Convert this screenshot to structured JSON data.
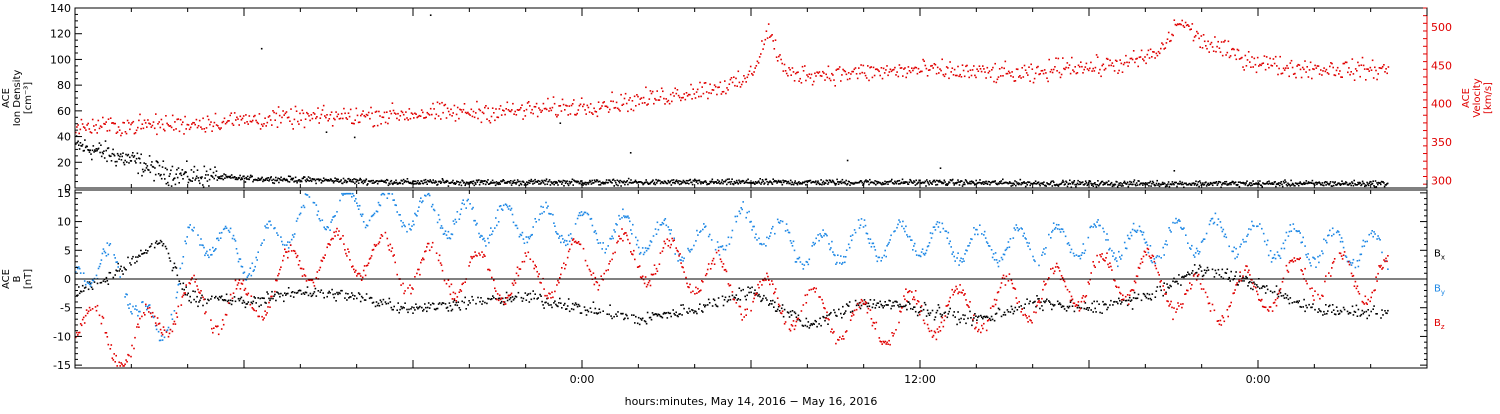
{
  "chart_data": [
    {
      "type": "scatter",
      "panel": "top",
      "ylabel": [
        "ACE",
        "Ion Density",
        "[cm⁻³]"
      ],
      "ylim": [
        0,
        140
      ],
      "yticks": [
        0,
        20,
        40,
        60,
        80,
        100,
        120,
        140
      ],
      "y2label": [
        "ACE",
        "Velocity",
        "[km/s]"
      ],
      "y2lim": [
        290,
        525
      ],
      "y2ticks": [
        300,
        350,
        400,
        450,
        500
      ],
      "y2_color": "#e00000",
      "xlim_hours": [
        -18,
        30
      ],
      "series": [
        {
          "axis": "left",
          "color": "#000000",
          "knots_hours": [
            -18,
            -17,
            -16,
            -15,
            -14,
            -12,
            -10,
            -6,
            0,
            6,
            12,
            18,
            24,
            28.6
          ],
          "knots_values": [
            34,
            28,
            22,
            13,
            10,
            8,
            7,
            5,
            5,
            5,
            5,
            4,
            4,
            4
          ],
          "outliers": [
            [
              -5.4,
              135
            ],
            [
              -11.4,
              109
            ],
            [
              -9.1,
              44
            ],
            [
              -8.1,
              40
            ],
            [
              -0.8,
              51
            ],
            [
              1.7,
              28
            ],
            [
              9.4,
              22
            ],
            [
              12.7,
              16
            ],
            [
              21.0,
              14
            ]
          ]
        },
        {
          "axis": "right",
          "color": "#e00000",
          "knots_hours": [
            -18,
            -14,
            -12,
            -8,
            -6,
            -2,
            0,
            2,
            4,
            5.6,
            6.0,
            6.6,
            7.2,
            9,
            12,
            14,
            16,
            17.2,
            18,
            19.5,
            20.5,
            21.2,
            22,
            23.5,
            25,
            28.6
          ],
          "knots_values": [
            370,
            375,
            380,
            385,
            388,
            392,
            398,
            405,
            418,
            428,
            440,
            497,
            440,
            440,
            445,
            442,
            438,
            452,
            448,
            455,
            468,
            510,
            482,
            460,
            448,
            445
          ]
        }
      ]
    },
    {
      "type": "scatter",
      "panel": "bottom",
      "ylabel": [
        "ACE",
        "B",
        "[nT]"
      ],
      "ylim": [
        -15.5,
        15.5
      ],
      "yticks": [
        -15,
        -10,
        -5,
        0,
        5,
        10,
        15
      ],
      "xlim_hours": [
        -18,
        30
      ],
      "xticks_hours": [
        -12,
        0,
        12,
        24
      ],
      "xtick_labels": [
        "0:00",
        "12:00",
        "0:00"
      ],
      "xtick_label_hours": [
        0,
        12,
        24
      ],
      "xlabel": "hours:minutes, May 14, 2016 − May 16, 2016",
      "series": [
        {
          "name": "Bx",
          "color": "#000000",
          "knots_hours": [
            -18,
            -17,
            -16,
            -15,
            -14,
            -12,
            -10,
            -8,
            -6,
            -4,
            -2,
            0,
            2,
            4,
            6,
            8,
            10,
            12,
            14,
            16,
            18,
            20,
            22,
            24,
            26,
            28.6
          ],
          "knots_values": [
            -2,
            0,
            3,
            7,
            -3,
            -4,
            -2,
            -3,
            -5,
            -4,
            -3,
            -5,
            -7,
            -5,
            -2,
            -8,
            -4,
            -5,
            -7,
            -4,
            -5,
            -3,
            2,
            -1,
            -5,
            -6
          ]
        },
        {
          "name": "By",
          "color": "#1e88e5",
          "knots_hours": [
            -18,
            -17,
            -16,
            -15,
            -14,
            -13,
            -12,
            -10,
            -8,
            -6,
            -4,
            -2,
            0,
            2,
            4,
            6,
            8,
            10,
            12,
            14,
            16,
            18,
            20,
            22,
            24,
            26,
            28.6
          ],
          "knots_values": [
            0,
            4,
            -2,
            -11,
            6,
            8,
            3,
            11,
            13,
            12,
            10,
            10,
            9,
            8,
            6,
            10,
            5,
            7,
            7,
            6,
            6,
            7,
            6,
            8,
            7,
            6,
            5
          ],
          "oscillation_period_hours": 1.4,
          "oscillation_amplitude": 3.0
        },
        {
          "name": "Bz",
          "color": "#e00000",
          "knots_hours": [
            -18,
            -17,
            -16,
            -15,
            -14,
            -12,
            -10,
            -8,
            -6,
            -4,
            -2,
            0,
            2,
            4,
            6,
            8,
            10,
            12,
            14,
            16,
            18,
            20,
            22,
            24,
            26,
            28.6
          ],
          "knots_values": [
            -6,
            -10,
            -12,
            -6,
            -4,
            -5,
            3,
            5,
            2,
            1,
            0,
            3,
            4,
            2,
            -3,
            -5,
            -8,
            -6,
            -5,
            -3,
            0,
            1,
            -4,
            -2,
            1,
            0
          ],
          "oscillation_period_hours": 1.7,
          "oscillation_amplitude": 4.0
        }
      ],
      "legend": [
        {
          "label": "B",
          "sub": "x",
          "color": "#000000"
        },
        {
          "label": "B",
          "sub": "y",
          "color": "#1e88e5"
        },
        {
          "label": "B",
          "sub": "z",
          "color": "#e00000"
        }
      ]
    }
  ]
}
